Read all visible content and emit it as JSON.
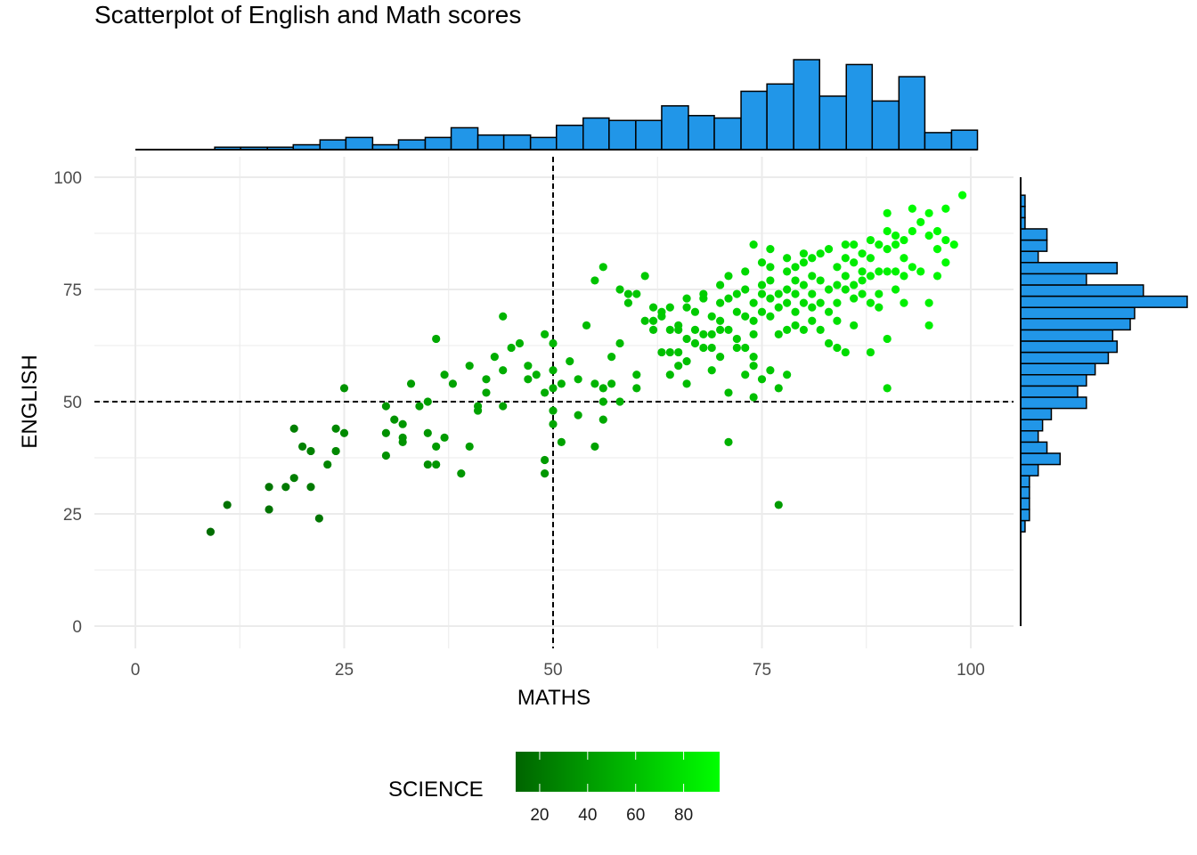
{
  "chart_data": {
    "type": "scatter",
    "title": "Scatterplot of English and Math scores",
    "xlabel": "MATHS",
    "ylabel": "ENGLISH",
    "xlim": [
      0,
      100
    ],
    "ylim": [
      0,
      100
    ],
    "xticks": [
      0,
      25,
      50,
      75,
      100
    ],
    "yticks": [
      0,
      25,
      50,
      75,
      100
    ],
    "grid": true,
    "reference_lines": {
      "x": 50,
      "y": 50,
      "style": "dashed"
    },
    "color_scale": {
      "name": "SCIENCE",
      "low_color": "#006400",
      "high_color": "#00FF00",
      "ticks": [
        20,
        40,
        60,
        80
      ],
      "range": [
        10,
        95
      ],
      "legend_position": "bottom"
    },
    "point_color_encoding": "SCIENCE",
    "points": [
      [
        9,
        21,
        15
      ],
      [
        11,
        27,
        18
      ],
      [
        16,
        31,
        20
      ],
      [
        16,
        26,
        18
      ],
      [
        18,
        31,
        22
      ],
      [
        19,
        33,
        24
      ],
      [
        19,
        44,
        25
      ],
      [
        20,
        40,
        26
      ],
      [
        21,
        31,
        22
      ],
      [
        21,
        39,
        26
      ],
      [
        22,
        24,
        20
      ],
      [
        23,
        36,
        28
      ],
      [
        24,
        39,
        30
      ],
      [
        24,
        44,
        30
      ],
      [
        25,
        43,
        31
      ],
      [
        25,
        53,
        36
      ],
      [
        30,
        43,
        34
      ],
      [
        30,
        38,
        35
      ],
      [
        30,
        49,
        38
      ],
      [
        31,
        46,
        36
      ],
      [
        32,
        45,
        38
      ],
      [
        32,
        42,
        37
      ],
      [
        32,
        41,
        36
      ],
      [
        33,
        54,
        42
      ],
      [
        34,
        49,
        40
      ],
      [
        35,
        43,
        38
      ],
      [
        35,
        36,
        34
      ],
      [
        35,
        50,
        42
      ],
      [
        36,
        40,
        40
      ],
      [
        36,
        36,
        38
      ],
      [
        36,
        64,
        48
      ],
      [
        37,
        56,
        46
      ],
      [
        37,
        42,
        40
      ],
      [
        38,
        54,
        44
      ],
      [
        39,
        34,
        38
      ],
      [
        40,
        58,
        48
      ],
      [
        40,
        40,
        42
      ],
      [
        41,
        49,
        44
      ],
      [
        41,
        48,
        44
      ],
      [
        42,
        52,
        46
      ],
      [
        42,
        55,
        48
      ],
      [
        43,
        60,
        50
      ],
      [
        44,
        69,
        54
      ],
      [
        44,
        49,
        44
      ],
      [
        44,
        57,
        50
      ],
      [
        45,
        62,
        52
      ],
      [
        46,
        63,
        52
      ],
      [
        47,
        55,
        50
      ],
      [
        47,
        58,
        52
      ],
      [
        48,
        56,
        52
      ],
      [
        49,
        52,
        50
      ],
      [
        49,
        37,
        40
      ],
      [
        49,
        34,
        38
      ],
      [
        49,
        65,
        56
      ],
      [
        50,
        63,
        56
      ],
      [
        50,
        45,
        46
      ],
      [
        50,
        48,
        48
      ],
      [
        50,
        57,
        52
      ],
      [
        50,
        53,
        50
      ],
      [
        51,
        41,
        44
      ],
      [
        51,
        54,
        52
      ],
      [
        52,
        59,
        54
      ],
      [
        53,
        47,
        48
      ],
      [
        53,
        55,
        54
      ],
      [
        54,
        67,
        58
      ],
      [
        55,
        40,
        44
      ],
      [
        55,
        54,
        54
      ],
      [
        55,
        77,
        62
      ],
      [
        56,
        46,
        48
      ],
      [
        56,
        50,
        50
      ],
      [
        56,
        53,
        52
      ],
      [
        56,
        80,
        64
      ],
      [
        57,
        54,
        54
      ],
      [
        57,
        60,
        56
      ],
      [
        58,
        50,
        52
      ],
      [
        58,
        63,
        58
      ],
      [
        58,
        75,
        62
      ],
      [
        59,
        72,
        62
      ],
      [
        59,
        74,
        62
      ],
      [
        60,
        53,
        54
      ],
      [
        60,
        56,
        56
      ],
      [
        60,
        74,
        64
      ],
      [
        61,
        68,
        62
      ],
      [
        61,
        78,
        66
      ],
      [
        62,
        66,
        62
      ],
      [
        62,
        71,
        64
      ],
      [
        62,
        68,
        64
      ],
      [
        63,
        69,
        66
      ],
      [
        63,
        70,
        66
      ],
      [
        63,
        61,
        60
      ],
      [
        64,
        56,
        58
      ],
      [
        64,
        66,
        64
      ],
      [
        64,
        71,
        66
      ],
      [
        64,
        61,
        60
      ],
      [
        65,
        58,
        60
      ],
      [
        65,
        61,
        62
      ],
      [
        65,
        66,
        64
      ],
      [
        65,
        67,
        64
      ],
      [
        66,
        73,
        68
      ],
      [
        66,
        54,
        58
      ],
      [
        66,
        64,
        64
      ],
      [
        66,
        59,
        60
      ],
      [
        66,
        71,
        66
      ],
      [
        67,
        66,
        66
      ],
      [
        67,
        70,
        66
      ],
      [
        67,
        63,
        64
      ],
      [
        68,
        73,
        68
      ],
      [
        68,
        65,
        66
      ],
      [
        68,
        62,
        64
      ],
      [
        68,
        74,
        68
      ],
      [
        69,
        57,
        62
      ],
      [
        69,
        69,
        68
      ],
      [
        69,
        62,
        64
      ],
      [
        69,
        65,
        66
      ],
      [
        70,
        76,
        70
      ],
      [
        70,
        66,
        66
      ],
      [
        70,
        60,
        62
      ],
      [
        70,
        68,
        68
      ],
      [
        70,
        72,
        70
      ],
      [
        71,
        78,
        72
      ],
      [
        71,
        73,
        70
      ],
      [
        71,
        66,
        68
      ],
      [
        71,
        41,
        52
      ],
      [
        71,
        52,
        58
      ],
      [
        72,
        70,
        70
      ],
      [
        72,
        64,
        66
      ],
      [
        72,
        62,
        66
      ],
      [
        72,
        74,
        72
      ],
      [
        73,
        75,
        72
      ],
      [
        73,
        69,
        70
      ],
      [
        73,
        79,
        74
      ],
      [
        73,
        62,
        66
      ],
      [
        73,
        56,
        64
      ],
      [
        74,
        85,
        78
      ],
      [
        74,
        72,
        72
      ],
      [
        74,
        65,
        68
      ],
      [
        74,
        60,
        66
      ],
      [
        74,
        58,
        64
      ],
      [
        74,
        51,
        60
      ],
      [
        74,
        68,
        70
      ],
      [
        75,
        74,
        74
      ],
      [
        75,
        70,
        72
      ],
      [
        75,
        76,
        74
      ],
      [
        75,
        55,
        62
      ],
      [
        75,
        81,
        76
      ],
      [
        76,
        77,
        76
      ],
      [
        76,
        69,
        72
      ],
      [
        76,
        73,
        74
      ],
      [
        76,
        57,
        64
      ],
      [
        76,
        84,
        78
      ],
      [
        76,
        80,
        76
      ],
      [
        77,
        74,
        76
      ],
      [
        77,
        71,
        74
      ],
      [
        77,
        65,
        70
      ],
      [
        77,
        27,
        40
      ],
      [
        77,
        53,
        60
      ],
      [
        78,
        79,
        78
      ],
      [
        78,
        75,
        76
      ],
      [
        78,
        72,
        74
      ],
      [
        78,
        66,
        72
      ],
      [
        78,
        82,
        78
      ],
      [
        78,
        56,
        66
      ],
      [
        79,
        77,
        78
      ],
      [
        79,
        80,
        78
      ],
      [
        79,
        74,
        76
      ],
      [
        79,
        70,
        74
      ],
      [
        79,
        67,
        72
      ],
      [
        80,
        83,
        80
      ],
      [
        80,
        81,
        80
      ],
      [
        80,
        76,
        78
      ],
      [
        80,
        72,
        76
      ],
      [
        80,
        66,
        74
      ],
      [
        81,
        82,
        80
      ],
      [
        81,
        78,
        78
      ],
      [
        81,
        74,
        78
      ],
      [
        81,
        71,
        76
      ],
      [
        81,
        68,
        74
      ],
      [
        82,
        83,
        82
      ],
      [
        82,
        77,
        80
      ],
      [
        82,
        72,
        78
      ],
      [
        82,
        66,
        74
      ],
      [
        83,
        75,
        80
      ],
      [
        83,
        84,
        82
      ],
      [
        83,
        70,
        78
      ],
      [
        83,
        63,
        74
      ],
      [
        84,
        80,
        82
      ],
      [
        84,
        76,
        80
      ],
      [
        84,
        72,
        80
      ],
      [
        84,
        68,
        78
      ],
      [
        84,
        62,
        74
      ],
      [
        85,
        85,
        84
      ],
      [
        85,
        82,
        84
      ],
      [
        85,
        75,
        80
      ],
      [
        85,
        78,
        82
      ],
      [
        85,
        61,
        76
      ],
      [
        86,
        81,
        84
      ],
      [
        86,
        76,
        82
      ],
      [
        86,
        85,
        86
      ],
      [
        86,
        73,
        80
      ],
      [
        86,
        67,
        78
      ],
      [
        87,
        83,
        86
      ],
      [
        87,
        77,
        84
      ],
      [
        87,
        79,
        84
      ],
      [
        87,
        74,
        82
      ],
      [
        88,
        82,
        86
      ],
      [
        88,
        86,
        88
      ],
      [
        88,
        78,
        86
      ],
      [
        88,
        72,
        84
      ],
      [
        88,
        61,
        78
      ],
      [
        89,
        85,
        88
      ],
      [
        89,
        79,
        86
      ],
      [
        89,
        74,
        84
      ],
      [
        89,
        71,
        82
      ],
      [
        90,
        92,
        90
      ],
      [
        90,
        84,
        88
      ],
      [
        90,
        88,
        90
      ],
      [
        90,
        79,
        88
      ],
      [
        90,
        64,
        82
      ],
      [
        90,
        53,
        76
      ],
      [
        91,
        87,
        90
      ],
      [
        91,
        85,
        90
      ],
      [
        91,
        79,
        88
      ],
      [
        91,
        75,
        86
      ],
      [
        92,
        86,
        90
      ],
      [
        92,
        82,
        90
      ],
      [
        92,
        78,
        88
      ],
      [
        92,
        72,
        86
      ],
      [
        93,
        93,
        92
      ],
      [
        93,
        88,
        92
      ],
      [
        93,
        80,
        90
      ],
      [
        94,
        90,
        92
      ],
      [
        94,
        79,
        90
      ],
      [
        95,
        92,
        94
      ],
      [
        95,
        87,
        92
      ],
      [
        95,
        72,
        88
      ],
      [
        95,
        67,
        86
      ],
      [
        96,
        88,
        92
      ],
      [
        96,
        78,
        90
      ],
      [
        96,
        84,
        92
      ],
      [
        97,
        93,
        94
      ],
      [
        97,
        86,
        92
      ],
      [
        97,
        81,
        92
      ],
      [
        98,
        85,
        94
      ],
      [
        99,
        96,
        95
      ]
    ],
    "x_histogram": {
      "bin_edges": [
        0,
        3.2,
        6.3,
        9.5,
        12.6,
        15.8,
        18.9,
        22.1,
        25.2,
        28.4,
        31.5,
        34.7,
        37.8,
        41,
        44.1,
        47.3,
        50.4,
        53.6,
        56.7,
        59.9,
        63,
        66.2,
        69.3,
        72.5,
        75.6,
        78.8,
        81.9,
        85.1,
        88.2,
        91.4,
        94.5,
        97.7,
        100.8
      ],
      "counts": [
        0,
        0,
        0,
        1,
        1,
        1,
        2,
        4,
        5,
        2,
        4,
        5,
        9,
        6,
        6,
        5,
        10,
        13,
        12,
        12,
        18,
        14,
        13,
        24,
        27,
        37,
        22,
        35,
        20,
        30,
        7,
        8
      ]
    },
    "y_histogram": {
      "bin_edges": [
        21,
        23.5,
        26,
        28.5,
        31,
        33.5,
        36,
        38.5,
        41,
        43.5,
        46,
        48.5,
        51,
        53.5,
        56,
        58.5,
        61,
        63.5,
        66,
        68.5,
        71,
        73.5,
        76,
        78.5,
        81,
        83.5,
        86,
        88.5,
        91,
        93.5,
        96
      ],
      "counts": [
        1,
        2,
        2,
        2,
        2,
        4,
        9,
        6,
        4,
        5,
        7,
        15,
        13,
        15,
        17,
        20,
        22,
        21,
        25,
        26,
        38,
        28,
        15,
        22,
        4,
        6,
        6,
        1,
        1,
        1
      ]
    }
  }
}
